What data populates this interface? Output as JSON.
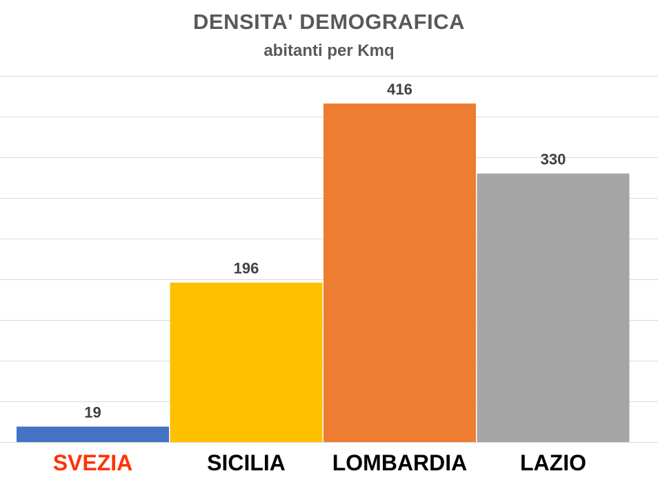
{
  "chart_data": {
    "type": "bar",
    "title": "DENSITA'  DEMOGRAFICA",
    "subtitle": "abitanti per Kmq",
    "categories": [
      "SVEZIA",
      "SICILIA",
      "LOMBARDIA",
      "LAZIO"
    ],
    "values": [
      19,
      196,
      416,
      330
    ],
    "bar_colors": [
      "#4472C4",
      "#FFC000",
      "#ED7D31",
      "#A5A5A5"
    ],
    "category_label_colors": [
      "#FF3300",
      "#000000",
      "#000000",
      "#000000"
    ],
    "ylim": [
      0,
      450
    ],
    "grid": true,
    "data_labels": true
  }
}
